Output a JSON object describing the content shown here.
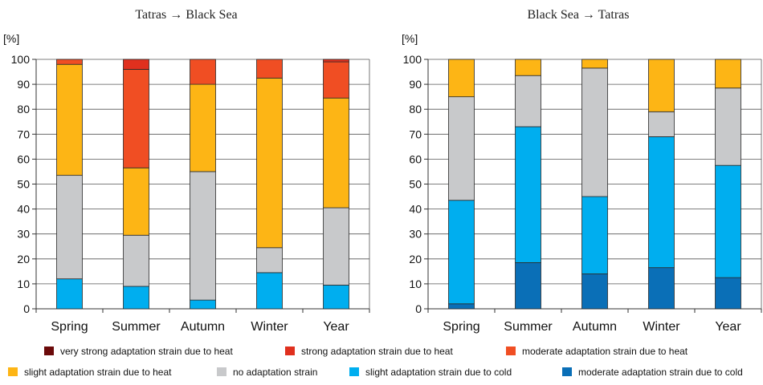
{
  "chart_data": [
    {
      "type": "bar",
      "stacked": true,
      "title": "Tatras → Black Sea",
      "ylabel": "[%]",
      "ylim": [
        0,
        100
      ],
      "yticks": [
        0,
        10,
        20,
        30,
        40,
        50,
        60,
        70,
        80,
        90,
        100
      ],
      "categories": [
        "Spring",
        "Summer",
        "Autumn",
        "Winter",
        "Year"
      ],
      "series": [
        {
          "name": "moderate adaptation strain due to cold",
          "values": [
            0,
            0,
            0,
            0,
            0
          ]
        },
        {
          "name": "slight adaptation strain due to cold",
          "values": [
            12,
            9,
            3.5,
            14.5,
            9.5
          ]
        },
        {
          "name": "no adaptation strain",
          "values": [
            41.5,
            20.5,
            51.5,
            10,
            31
          ]
        },
        {
          "name": "slight adaptation strain due to heat",
          "values": [
            44.5,
            27,
            35,
            68,
            44
          ]
        },
        {
          "name": "moderate adaptation strain due to heat",
          "values": [
            2,
            39.5,
            10,
            7.5,
            14.5
          ]
        },
        {
          "name": "strong adaptation strain due to heat",
          "values": [
            0,
            4,
            0,
            0,
            1
          ]
        },
        {
          "name": "very strong adaptation strain due to heat",
          "values": [
            0,
            0,
            0,
            0,
            0
          ]
        }
      ]
    },
    {
      "type": "bar",
      "stacked": true,
      "title": "Black Sea → Tatras",
      "ylabel": "[%]",
      "ylim": [
        0,
        100
      ],
      "yticks": [
        0,
        10,
        20,
        30,
        40,
        50,
        60,
        70,
        80,
        90,
        100
      ],
      "categories": [
        "Spring",
        "Summer",
        "Autumn",
        "Winter",
        "Year"
      ],
      "series": [
        {
          "name": "moderate adaptation strain due to cold",
          "values": [
            2,
            18.5,
            14,
            16.5,
            12.5
          ]
        },
        {
          "name": "slight adaptation strain due to cold",
          "values": [
            41.5,
            54.5,
            31,
            52.5,
            45
          ]
        },
        {
          "name": "no adaptation strain",
          "values": [
            41.5,
            20.5,
            51.5,
            10,
            31
          ]
        },
        {
          "name": "slight adaptation strain due to heat",
          "values": [
            15,
            6.5,
            3.5,
            21,
            11.5
          ]
        },
        {
          "name": "moderate adaptation strain due to heat",
          "values": [
            0,
            0,
            0,
            0,
            0
          ]
        },
        {
          "name": "strong adaptation strain due to heat",
          "values": [
            0,
            0,
            0,
            0,
            0
          ]
        },
        {
          "name": "very strong adaptation strain due to heat",
          "values": [
            0,
            0,
            0,
            0,
            0
          ]
        }
      ]
    }
  ],
  "legend": {
    "items": [
      {
        "label": "very strong adaptation strain due to heat",
        "color": "#6b0a0a"
      },
      {
        "label": "strong adaptation strain due to heat",
        "color": "#e0301e"
      },
      {
        "label": "moderate adaptation strain due to heat",
        "color": "#f04e23"
      },
      {
        "label": "slight adaptation strain due to heat",
        "color": "#fdb515"
      },
      {
        "label": "no adaptation strain",
        "color": "#c8c9cb"
      },
      {
        "label": "slight adaptation strain due to cold",
        "color": "#00aeef"
      },
      {
        "label": "moderate adaptation strain due to cold",
        "color": "#0a6fb7"
      }
    ]
  },
  "series_colors": {
    "moderate adaptation strain due to cold": "#0a6fb7",
    "slight adaptation strain due to cold": "#00aeef",
    "no adaptation strain": "#c8c9cb",
    "slight adaptation strain due to heat": "#fdb515",
    "moderate adaptation strain due to heat": "#f04e23",
    "strong adaptation strain due to heat": "#e0301e",
    "very strong adaptation strain due to heat": "#6b0a0a"
  }
}
